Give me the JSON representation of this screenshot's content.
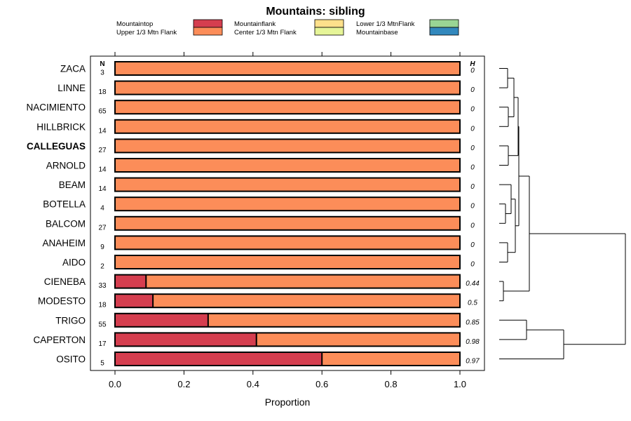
{
  "chart_data": {
    "type": "bar",
    "orientation": "horizontal-stacked",
    "title": "Mountains: sibling",
    "xlabel": "Proportion",
    "xlim": [
      0,
      1
    ],
    "xticks": [
      "0.0",
      "0.2",
      "0.4",
      "0.6",
      "0.8",
      "1.0"
    ],
    "n_header": "N",
    "h_header": "H",
    "categories": [
      "ZACA",
      "LINNE",
      "NACIMIENTO",
      "HILLBRICK",
      "CALLEGUAS",
      "ARNOLD",
      "BEAM",
      "BOTELLA",
      "BALCOM",
      "ANAHEIM",
      "AIDO",
      "CIENEBA",
      "MODESTO",
      "TRIGO",
      "CAPERTON",
      "OSITO"
    ],
    "highlighted": "CALLEGUAS",
    "n": [
      "3",
      "18",
      "65",
      "14",
      "27",
      "14",
      "14",
      "4",
      "27",
      "9",
      "2",
      "33",
      "18",
      "55",
      "17",
      "5"
    ],
    "h": [
      "0",
      "0",
      "0",
      "0",
      "0",
      "0",
      "0",
      "0",
      "0",
      "0",
      "0",
      "0.44",
      "0.5",
      "0.85",
      "0.98",
      "0.97"
    ],
    "series": [
      {
        "name": "Mountaintop",
        "color": "#D53E4F",
        "values": [
          0,
          0,
          0,
          0,
          0,
          0,
          0,
          0,
          0,
          0,
          0,
          0.09,
          0.11,
          0.27,
          0.41,
          0.6
        ]
      },
      {
        "name": "Upper 1/3 Mtn Flank",
        "color": "#FC8D59",
        "values": [
          1,
          1,
          1,
          1,
          1,
          1,
          1,
          1,
          1,
          1,
          1,
          0.91,
          0.89,
          0.73,
          0.59,
          0.4
        ]
      },
      {
        "name": "Mountainflank",
        "color": "#FEE08B",
        "values": [
          0,
          0,
          0,
          0,
          0,
          0,
          0,
          0,
          0,
          0,
          0,
          0,
          0,
          0,
          0,
          0
        ]
      },
      {
        "name": "Center 1/3 Mtn Flank",
        "color": "#E6F598",
        "values": [
          0,
          0,
          0,
          0,
          0,
          0,
          0,
          0,
          0,
          0,
          0,
          0,
          0,
          0,
          0,
          0
        ]
      },
      {
        "name": "Lower 1/3 MtnFlank",
        "color": "#99D594",
        "values": [
          0,
          0,
          0,
          0,
          0,
          0,
          0,
          0,
          0,
          0,
          0,
          0,
          0,
          0,
          0,
          0
        ]
      },
      {
        "name": "Mountainbase",
        "color": "#3288BD",
        "values": [
          0,
          0,
          0,
          0,
          0,
          0,
          0,
          0,
          0,
          0,
          0,
          0,
          0,
          0,
          0,
          0
        ]
      }
    ],
    "legend_position": "top",
    "dendrogram": "right"
  }
}
